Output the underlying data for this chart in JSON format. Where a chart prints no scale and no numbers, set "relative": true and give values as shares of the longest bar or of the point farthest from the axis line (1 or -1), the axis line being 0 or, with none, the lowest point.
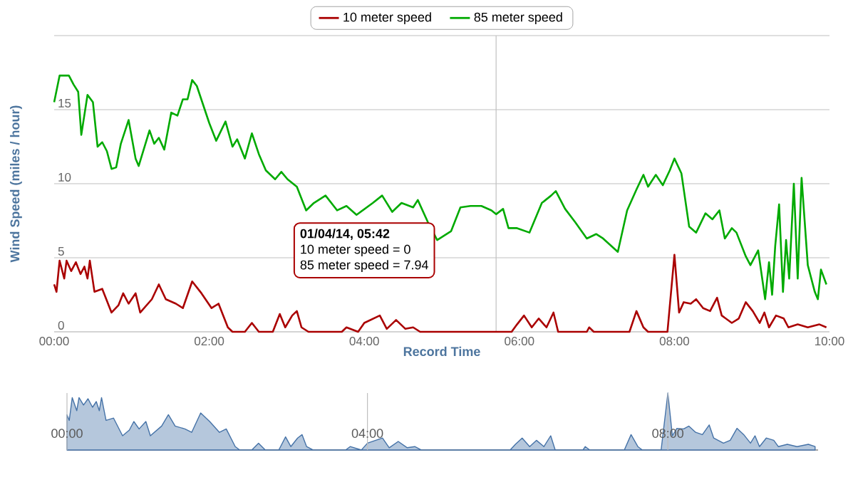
{
  "chart_data": [
    {
      "type": "line",
      "xlabel": "Record Time",
      "ylabel": "Wind Speed (miles / hour)",
      "xlim": [
        0,
        10
      ],
      "ylim": [
        0,
        20
      ],
      "xticks": [
        {
          "value": 0,
          "label": "00:00"
        },
        {
          "value": 2,
          "label": "02:00"
        },
        {
          "value": 4,
          "label": "04:00"
        },
        {
          "value": 6,
          "label": "06:00"
        },
        {
          "value": 8,
          "label": "08:00"
        },
        {
          "value": 10,
          "label": "10:00"
        }
      ],
      "yticks": [
        0,
        5,
        10,
        15,
        {
          "value": 20,
          "label": null
        }
      ],
      "grid": "y",
      "legend": "top",
      "marker": "none",
      "line_style": "solid",
      "ref_lines": [
        {
          "axis": "x",
          "value": 5.7,
          "color": "#c0c0c0"
        }
      ],
      "annotations": [
        "01/04/14, 05:42",
        "10 meter speed = 0",
        "85 meter speed = 7.94"
      ],
      "series": [
        {
          "name": "10 meter speed",
          "color": "#aa0000",
          "x": [
            0.0,
            0.03,
            0.07,
            0.13,
            0.16,
            0.22,
            0.28,
            0.34,
            0.39,
            0.43,
            0.46,
            0.52,
            0.62,
            0.74,
            0.83,
            0.89,
            0.96,
            1.05,
            1.11,
            1.26,
            1.35,
            1.44,
            1.57,
            1.66,
            1.78,
            1.9,
            2.03,
            2.12,
            2.24,
            2.3,
            2.46,
            2.55,
            2.64,
            2.82,
            2.91,
            2.98,
            3.07,
            3.13,
            3.19,
            3.28,
            3.71,
            3.77,
            3.92,
            4.0,
            4.2,
            4.29,
            4.41,
            4.53,
            4.63,
            4.72,
            5.7,
            5.9,
            5.97,
            6.06,
            6.16,
            6.25,
            6.35,
            6.44,
            6.5,
            6.87,
            6.9,
            6.96,
            7.42,
            7.51,
            7.6,
            7.66,
            7.91,
            8.0,
            8.06,
            8.12,
            8.21,
            8.28,
            8.37,
            8.46,
            8.55,
            8.61,
            8.74,
            8.83,
            8.92,
            9.01,
            9.1,
            9.16,
            9.22,
            9.31,
            9.41,
            9.47,
            9.59,
            9.72,
            9.87,
            9.96
          ],
          "values": [
            3.2,
            2.7,
            4.8,
            3.6,
            4.8,
            4.1,
            4.7,
            3.9,
            4.4,
            3.6,
            4.8,
            2.7,
            2.9,
            1.3,
            1.8,
            2.6,
            1.9,
            2.6,
            1.3,
            2.2,
            3.2,
            2.2,
            1.9,
            1.6,
            3.4,
            2.6,
            1.6,
            1.9,
            0.3,
            0,
            0,
            0.6,
            0,
            0,
            1.2,
            0.3,
            1.1,
            1.4,
            0.3,
            0,
            0,
            0.3,
            0,
            0.6,
            1.1,
            0.2,
            0.8,
            0.2,
            0.3,
            0,
            0,
            0,
            0.5,
            1.1,
            0.3,
            0.9,
            0.3,
            1.3,
            0,
            0,
            0.3,
            0,
            0,
            1.4,
            0.3,
            0,
            0,
            5.2,
            1.3,
            2.0,
            1.9,
            2.2,
            1.6,
            1.4,
            2.3,
            1.1,
            0.6,
            0.9,
            2.0,
            1.4,
            0.6,
            1.3,
            0.3,
            1.1,
            0.9,
            0.3,
            0.5,
            0.3,
            0.5,
            0.3
          ]
        },
        {
          "name": "85 meter speed",
          "color": "#00aa00",
          "x": [
            0.0,
            0.07,
            0.19,
            0.25,
            0.31,
            0.35,
            0.43,
            0.5,
            0.56,
            0.62,
            0.68,
            0.74,
            0.8,
            0.86,
            0.96,
            1.05,
            1.09,
            1.23,
            1.29,
            1.35,
            1.42,
            1.51,
            1.59,
            1.66,
            1.72,
            1.78,
            1.84,
            2.0,
            2.09,
            2.21,
            2.3,
            2.36,
            2.46,
            2.55,
            2.64,
            2.73,
            2.85,
            2.93,
            3.01,
            3.13,
            3.25,
            3.35,
            3.5,
            3.65,
            3.77,
            3.9,
            4.11,
            4.23,
            4.36,
            4.48,
            4.63,
            4.69,
            4.82,
            4.94,
            5.12,
            5.24,
            5.37,
            5.51,
            5.64,
            5.7,
            5.79,
            5.86,
            5.97,
            6.13,
            6.29,
            6.41,
            6.47,
            6.59,
            6.72,
            6.87,
            6.99,
            7.08,
            7.27,
            7.39,
            7.51,
            7.6,
            7.66,
            7.76,
            7.85,
            7.94,
            8.0,
            8.09,
            8.19,
            8.28,
            8.4,
            8.49,
            8.58,
            8.65,
            8.74,
            8.8,
            8.92,
            8.98,
            9.08,
            9.17,
            9.22,
            9.26,
            9.3,
            9.35,
            9.4,
            9.44,
            9.48,
            9.54,
            9.59,
            9.64,
            9.72,
            9.81,
            9.85,
            9.89,
            9.96
          ],
          "values": [
            15.5,
            17.3,
            17.3,
            16.7,
            16.2,
            13.3,
            16.0,
            15.5,
            12.5,
            12.8,
            12.2,
            11.0,
            11.1,
            12.7,
            14.3,
            11.7,
            11.2,
            13.6,
            12.7,
            13.1,
            12.3,
            14.8,
            14.6,
            15.7,
            15.7,
            17.0,
            16.6,
            14.1,
            12.9,
            14.2,
            12.5,
            13.0,
            11.7,
            13.4,
            12.0,
            10.9,
            10.3,
            10.8,
            10.3,
            9.8,
            8.2,
            8.7,
            9.2,
            8.2,
            8.5,
            7.9,
            8.7,
            9.2,
            8.1,
            8.7,
            8.4,
            8.9,
            7.4,
            6.2,
            6.8,
            8.4,
            8.5,
            8.5,
            8.2,
            7.94,
            8.3,
            7.0,
            7.0,
            6.7,
            8.7,
            9.2,
            9.5,
            8.3,
            7.4,
            6.3,
            6.6,
            6.3,
            5.4,
            8.2,
            9.6,
            10.6,
            9.8,
            10.6,
            9.9,
            10.9,
            11.7,
            10.7,
            7.1,
            6.7,
            8.0,
            7.6,
            8.2,
            6.3,
            7.0,
            6.7,
            5.1,
            4.5,
            5.5,
            2.2,
            4.7,
            2.5,
            5.8,
            8.6,
            2.7,
            6.2,
            3.6,
            10.0,
            3.6,
            10.4,
            4.5,
            2.7,
            2.2,
            4.2,
            3.2
          ]
        }
      ]
    },
    {
      "type": "area",
      "xlim": [
        0,
        10
      ],
      "relative": true,
      "tick_labels": "x",
      "grid": "x",
      "xticks": [
        {
          "value": 0,
          "label": "00:00"
        },
        {
          "value": 4,
          "label": "04:00"
        },
        {
          "value": 8,
          "label": "08:00"
        }
      ],
      "series": [
        {
          "color": "#4572a7",
          "x": [
            0.0,
            0.03,
            0.07,
            0.13,
            0.16,
            0.22,
            0.28,
            0.34,
            0.39,
            0.43,
            0.46,
            0.52,
            0.62,
            0.74,
            0.83,
            0.89,
            0.96,
            1.05,
            1.11,
            1.26,
            1.35,
            1.44,
            1.57,
            1.66,
            1.78,
            1.9,
            2.03,
            2.12,
            2.24,
            2.3,
            2.46,
            2.55,
            2.64,
            2.82,
            2.91,
            2.98,
            3.07,
            3.13,
            3.19,
            3.28,
            3.71,
            3.77,
            3.92,
            4.0,
            4.2,
            4.29,
            4.41,
            4.53,
            4.63,
            4.72,
            5.7,
            5.9,
            5.97,
            6.06,
            6.16,
            6.25,
            6.35,
            6.44,
            6.5,
            6.87,
            6.9,
            6.96,
            7.42,
            7.51,
            7.6,
            7.66,
            7.91,
            8.0,
            8.06,
            8.12,
            8.21,
            8.28,
            8.37,
            8.46,
            8.55,
            8.61,
            8.74,
            8.83,
            8.92,
            9.01,
            9.1,
            9.16,
            9.22,
            9.31,
            9.41,
            9.47,
            9.59,
            9.72,
            9.87,
            9.96
          ],
          "values": [
            0.62,
            0.52,
            0.92,
            0.69,
            0.92,
            0.79,
            0.9,
            0.75,
            0.85,
            0.69,
            0.92,
            0.52,
            0.56,
            0.25,
            0.35,
            0.5,
            0.37,
            0.5,
            0.25,
            0.42,
            0.62,
            0.42,
            0.37,
            0.31,
            0.65,
            0.5,
            0.31,
            0.37,
            0.06,
            0,
            0,
            0.12,
            0,
            0,
            0.23,
            0.06,
            0.21,
            0.27,
            0.06,
            0,
            0,
            0.06,
            0,
            0.12,
            0.21,
            0.04,
            0.15,
            0.04,
            0.06,
            0,
            0,
            0,
            0.1,
            0.21,
            0.06,
            0.17,
            0.06,
            0.25,
            0,
            0,
            0.06,
            0,
            0,
            0.27,
            0.06,
            0,
            0,
            1,
            0.25,
            0.38,
            0.37,
            0.42,
            0.31,
            0.27,
            0.44,
            0.21,
            0.12,
            0.17,
            0.38,
            0.27,
            0.12,
            0.25,
            0.06,
            0.21,
            0.17,
            0.06,
            0.1,
            0.06,
            0.1,
            0.06
          ]
        }
      ]
    }
  ]
}
